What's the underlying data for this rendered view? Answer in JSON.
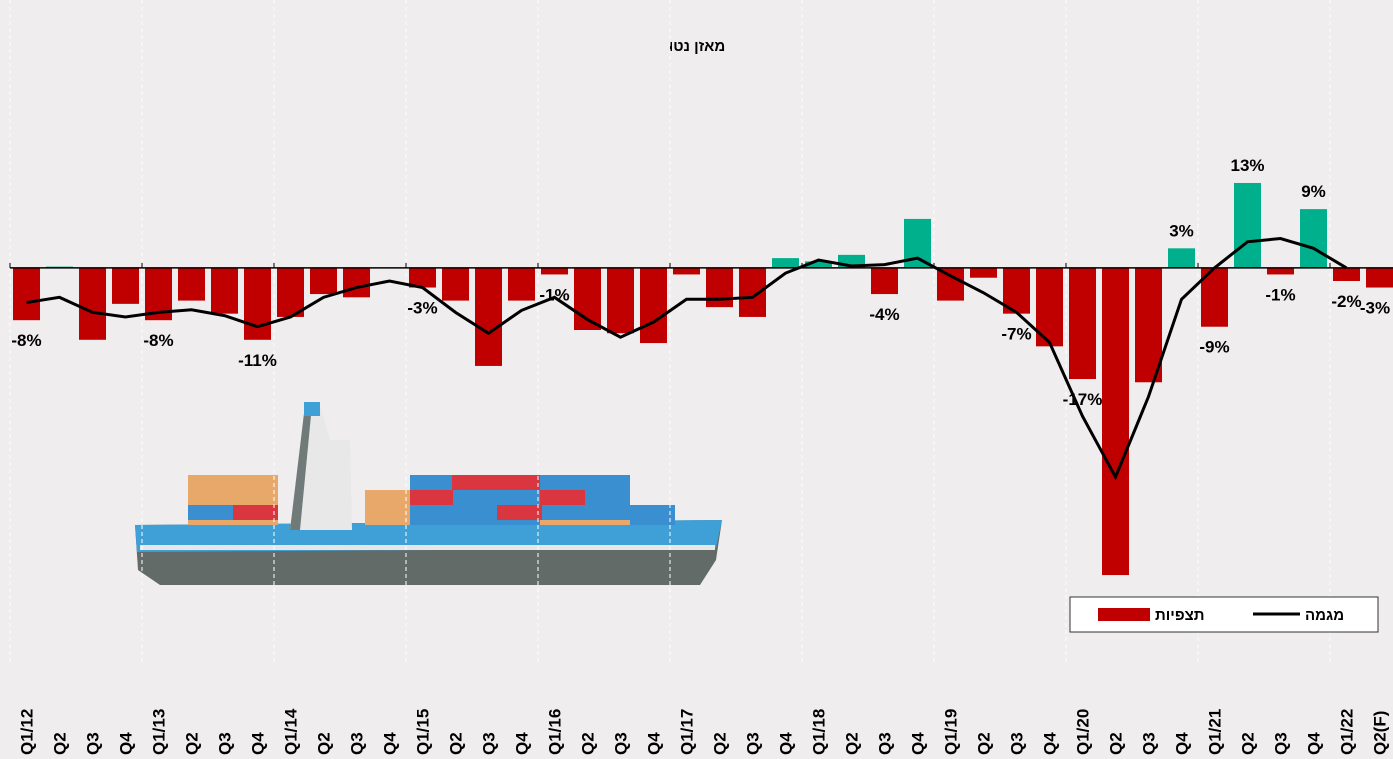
{
  "chart_data": {
    "type": "bar",
    "title": "מאזן נטו",
    "categories": [
      "Q1/12",
      "Q2",
      "Q3",
      "Q4",
      "Q1/13",
      "Q2",
      "Q3",
      "Q4",
      "Q1/14",
      "Q2",
      "Q3",
      "Q4",
      "Q1/15",
      "Q2",
      "Q3",
      "Q4",
      "Q1/16",
      "Q2",
      "Q3",
      "Q4",
      "Q1/17",
      "Q2",
      "Q3",
      "Q4",
      "Q1/18",
      "Q2",
      "Q3",
      "Q4",
      "Q1/19",
      "Q2",
      "Q3",
      "Q4",
      "Q1/20",
      "Q2",
      "Q3",
      "Q4",
      "Q1/21",
      "Q2",
      "Q3",
      "Q4",
      "Q1/22",
      "Q2(F)"
    ],
    "series": [
      {
        "name": "תצפיות",
        "type": "bar",
        "color": "#c00000",
        "positive_color": "#00b08c",
        "values": [
          -8,
          0.2,
          -11,
          -5.5,
          -8,
          -5,
          -7,
          -11,
          -7.5,
          -4,
          -4.5,
          0,
          -3,
          -5,
          -15,
          -5,
          -1,
          -9.5,
          -10,
          -11.5,
          -1,
          -6,
          -7.5,
          1.5,
          1,
          2,
          -4,
          7.5,
          -5,
          -1.5,
          -7,
          -12,
          -17,
          -47,
          -17.5,
          3,
          -9,
          13,
          -1,
          9,
          -2,
          -3
        ],
        "value_labels": [
          "-8%",
          null,
          null,
          null,
          "-8%",
          null,
          null,
          "-11%",
          null,
          null,
          null,
          null,
          "-3%",
          null,
          null,
          null,
          "-1%",
          null,
          null,
          null,
          null,
          null,
          null,
          null,
          null,
          null,
          "-4%",
          null,
          null,
          null,
          "-7%",
          null,
          "-17%",
          null,
          null,
          "3%",
          "-9%",
          "13%",
          "-1%",
          "9%",
          "-2%",
          "-3%"
        ]
      },
      {
        "name": "מגמה",
        "type": "line",
        "color": "#000000",
        "values": [
          -5.3,
          -4.5,
          -6.8,
          -7.5,
          -6.8,
          -6.4,
          -7.3,
          -9,
          -7.5,
          -4.5,
          -3,
          -2,
          -3,
          -6.8,
          -10,
          -6.5,
          -4.5,
          -7.9,
          -10.6,
          -8.3,
          -4.8,
          -4.8,
          -4.5,
          -0.8,
          1.2,
          0.3,
          0.5,
          1.5,
          -1.2,
          -3.8,
          -6.8,
          -11.4,
          -22.7,
          -32,
          -19.7,
          -4.8,
          0,
          4,
          4.5,
          3,
          0,
          null
        ]
      }
    ],
    "ylim": [
      -60,
      41
    ]
  }
}
